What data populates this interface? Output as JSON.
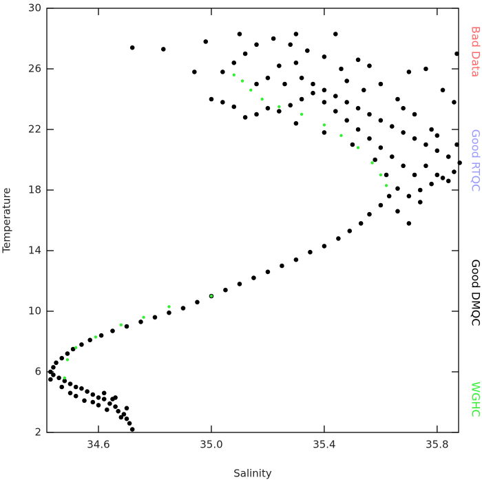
{
  "chart_data": {
    "type": "scatter",
    "x_label": "Salinity",
    "y_label": "Temperature",
    "xlim": [
      34.417,
      35.876
    ],
    "ylim": [
      2,
      30
    ],
    "xticks": [
      34.6,
      {
        "value": 35,
        "label": "35.0"
      },
      35.4,
      35.8
    ],
    "yticks": [
      2,
      6,
      10,
      14,
      18,
      22,
      26,
      30
    ],
    "series": [
      {
        "name": "Bad Data",
        "color": "#ff6666",
        "x": [],
        "y": []
      },
      {
        "name": "Good RTQC",
        "color": "#9999ff",
        "x": [],
        "y": []
      },
      {
        "name": "Good DMQC",
        "color": "#000000",
        "x": [
          34.72,
          34.71,
          34.7,
          34.69,
          34.67,
          34.66,
          34.64,
          34.62,
          34.6,
          34.58,
          34.56,
          34.54,
          34.52,
          34.5,
          34.48,
          34.46,
          34.44,
          34.43,
          34.65,
          34.6,
          34.55,
          34.52,
          34.5,
          34.68,
          34.63,
          34.58,
          34.47,
          34.7,
          34.66,
          34.62,
          34.43,
          34.44,
          34.45,
          34.47,
          34.49,
          34.51,
          34.54,
          34.57,
          34.61,
          34.65,
          34.7,
          34.75,
          34.8,
          34.85,
          34.9,
          34.95,
          35.0,
          35.05,
          35.1,
          35.15,
          35.2,
          35.25,
          35.3,
          35.35,
          35.4,
          35.45,
          35.49,
          35.53,
          35.56,
          35.6,
          35.63,
          35.66,
          35.7,
          35.74,
          35.78,
          35.82,
          35.86,
          35.88,
          35.84,
          35.8,
          35.76,
          35.72,
          35.68,
          35.64,
          35.6,
          35.56,
          35.52,
          35.48,
          35.44,
          35.4,
          35.36,
          35.32,
          35.72,
          35.68,
          35.64,
          35.6,
          35.56,
          35.52,
          35.48,
          35.44,
          35.4,
          35.36,
          35.32,
          35.28,
          35.24,
          35.2,
          35.16,
          35.12,
          35.08,
          35.04,
          35.0,
          35.3,
          35.4,
          35.5,
          35.58,
          35.62,
          35.76,
          35.8,
          35.84,
          35.78,
          35.72,
          35.66,
          35.6,
          35.56,
          35.52,
          35.46,
          35.4,
          35.34,
          35.28,
          35.22,
          35.16,
          35.12,
          35.08,
          35.04,
          35.1,
          35.3,
          35.44,
          35.24,
          35.2,
          35.16,
          35.7,
          35.76,
          35.82,
          35.86,
          35.87,
          35.87,
          35.8,
          35.68,
          35.54,
          35.48,
          35.3,
          35.26,
          34.98,
          34.94,
          34.72,
          34.83,
          35.7,
          35.66,
          35.74
        ],
        "y": [
          2.2,
          2.6,
          2.9,
          3.2,
          3.4,
          3.7,
          3.9,
          4.2,
          4.3,
          4.5,
          4.7,
          4.9,
          5.0,
          5.2,
          5.4,
          5.6,
          5.8,
          5.5,
          4.2,
          3.8,
          4.1,
          4.4,
          4.6,
          3.0,
          3.5,
          4.0,
          5.0,
          3.6,
          4.3,
          4.6,
          6.0,
          6.3,
          6.6,
          6.9,
          7.2,
          7.5,
          7.8,
          8.1,
          8.4,
          8.7,
          9.0,
          9.3,
          9.6,
          9.9,
          10.2,
          10.6,
          11.0,
          11.4,
          11.8,
          12.2,
          12.6,
          13.0,
          13.4,
          13.9,
          14.3,
          14.8,
          15.3,
          15.8,
          16.4,
          17.0,
          17.6,
          18.1,
          17.6,
          18.0,
          18.4,
          18.8,
          19.2,
          19.8,
          20.2,
          20.6,
          21.0,
          21.4,
          21.8,
          22.2,
          22.6,
          23.0,
          23.4,
          23.8,
          24.2,
          24.6,
          25.0,
          25.4,
          19.0,
          19.6,
          20.2,
          20.8,
          21.4,
          22.0,
          22.6,
          23.2,
          23.8,
          24.4,
          24.0,
          23.6,
          23.2,
          23.4,
          23.0,
          22.8,
          23.5,
          23.8,
          24.0,
          22.4,
          21.8,
          21.0,
          20.0,
          19.0,
          19.6,
          19.0,
          18.6,
          22.0,
          23.0,
          24.0,
          25.0,
          26.2,
          26.6,
          26.0,
          26.8,
          27.2,
          27.6,
          28.0,
          27.6,
          27.0,
          26.4,
          25.8,
          28.3,
          28.3,
          28.3,
          26.2,
          25.4,
          25.0,
          25.8,
          26.0,
          24.6,
          23.8,
          21.0,
          27.0,
          21.6,
          23.4,
          24.6,
          25.2,
          26.4,
          25.0,
          27.8,
          25.8,
          27.4,
          27.3,
          15.8,
          16.6,
          17.2
        ]
      },
      {
        "name": "WGHC",
        "color": "#33ee33",
        "x": [
          35.08,
          35.11,
          35.14,
          35.18,
          35.24,
          35.32,
          35.4,
          35.46,
          35.52,
          35.57,
          35.6,
          35.62,
          35.0,
          34.85,
          34.76,
          34.68,
          34.59,
          34.52,
          34.49,
          34.48
        ],
        "y": [
          25.6,
          25.2,
          24.6,
          24.0,
          23.5,
          23.0,
          22.3,
          21.6,
          20.8,
          19.8,
          19.0,
          18.3,
          11.0,
          10.3,
          9.6,
          9.1,
          8.3,
          7.6,
          6.8,
          5.6
        ]
      }
    ]
  }
}
